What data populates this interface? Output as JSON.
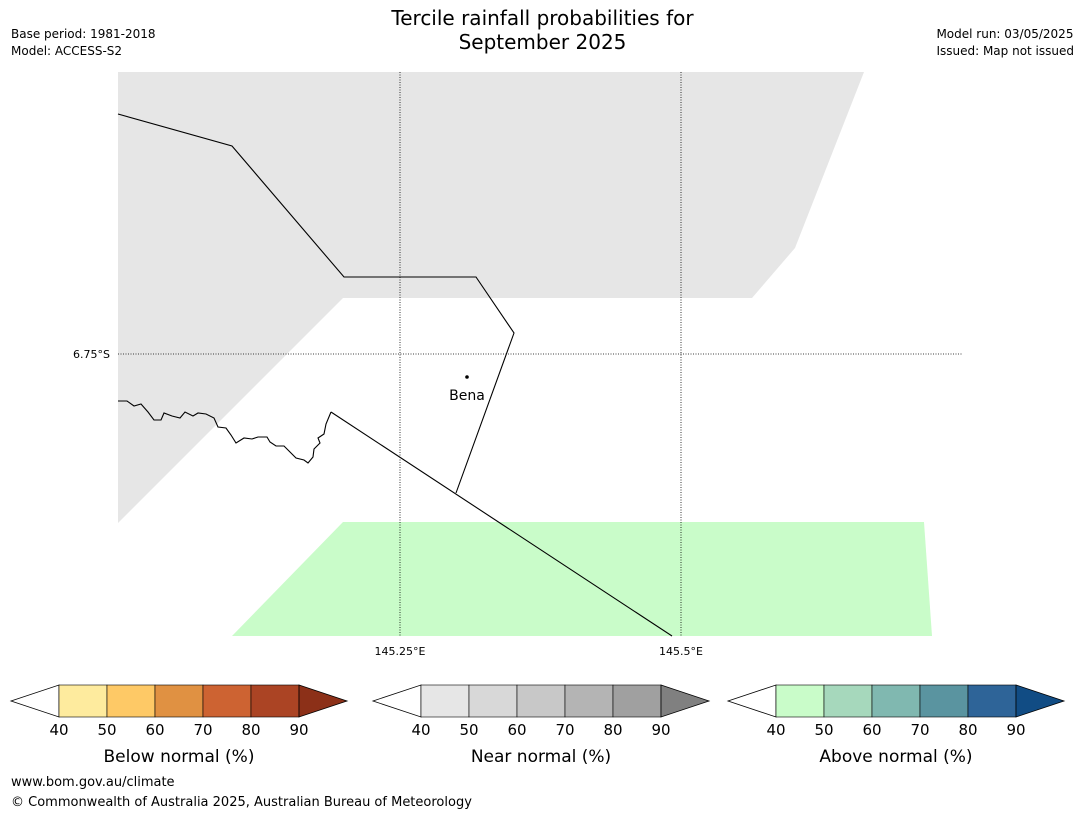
{
  "title_line1": "Tercile rainfall probabilities for",
  "title_line2": "September 2025",
  "meta_left": {
    "base_period": "Base period: 1981-2018",
    "model": "Model: ACCESS-S2"
  },
  "meta_right": {
    "model_run": "Model run: 03/05/2025",
    "issued": "Issued: Map not issued"
  },
  "map": {
    "lat_label": "6.75°S",
    "lon_labels": [
      "145.25°E",
      "145.5°E"
    ],
    "place": "Bena",
    "colors": {
      "near_normal_fill": "#e6e6e6",
      "above_normal_fill": "#c9fcc9"
    }
  },
  "colorbars": [
    {
      "label": "Below normal (%)",
      "ticks": [
        "40",
        "50",
        "60",
        "70",
        "80",
        "90"
      ],
      "colors": [
        "#ffffff",
        "#feeb9e",
        "#fec966",
        "#e09142",
        "#cd6332",
        "#ab4424",
        "#8c3018"
      ]
    },
    {
      "label": "Near normal (%)",
      "ticks": [
        "40",
        "50",
        "60",
        "70",
        "80",
        "90"
      ],
      "colors": [
        "#ffffff",
        "#e6e6e6",
        "#d8d8d8",
        "#c8c8c8",
        "#b4b4b4",
        "#a0a0a0",
        "#808080"
      ]
    },
    {
      "label": "Above normal (%)",
      "ticks": [
        "40",
        "50",
        "60",
        "70",
        "80",
        "90"
      ],
      "colors": [
        "#ffffff",
        "#c9fcc9",
        "#a6d8bc",
        "#80b8b0",
        "#5a94a0",
        "#2e6498",
        "#114c84"
      ]
    }
  ],
  "footer": {
    "url": "www.bom.gov.au/climate",
    "copyright": "© Commonwealth of Australia 2025, Australian Bureau of Meteorology"
  }
}
